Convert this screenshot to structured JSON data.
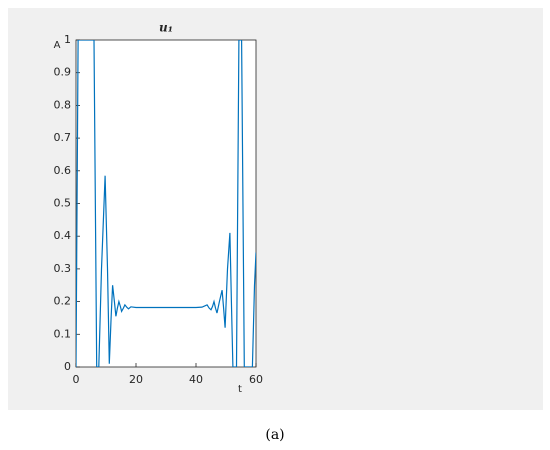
{
  "chart_data": {
    "type": "line",
    "title": "u₁",
    "xlabel": "t",
    "ylabel": "A",
    "caption": "(a)",
    "x": [
      0,
      0.7,
      6,
      6.9,
      7.6,
      8.5,
      9.7,
      10.5,
      11.1,
      11.7,
      12.2,
      12.8,
      13.3,
      13.8,
      14.3,
      14.8,
      15.2,
      15.8,
      16.3,
      17,
      17.5,
      18.3,
      20,
      30,
      40,
      42,
      43,
      43.7,
      44.4,
      45,
      45.5,
      46,
      46.5,
      47,
      47.8,
      48.7,
      49.2,
      49.7,
      50.5,
      51.3,
      51.8,
      52.3,
      53.5,
      54.3,
      55.2,
      56.1,
      58.8,
      59.5,
      60
    ],
    "values": [
      0,
      1,
      1,
      0,
      0,
      0.3,
      0.585,
      0.3,
      0.01,
      0.15,
      0.25,
      0.2,
      0.155,
      0.18,
      0.2,
      0.185,
      0.17,
      0.18,
      0.19,
      0.182,
      0.178,
      0.184,
      0.182,
      0.182,
      0.182,
      0.183,
      0.187,
      0.19,
      0.18,
      0.175,
      0.185,
      0.2,
      0.18,
      0.165,
      0.2,
      0.235,
      0.18,
      0.12,
      0.3,
      0.41,
      0.2,
      0,
      0,
      1,
      1,
      0,
      0,
      0.25,
      0.35
    ],
    "color": "#0072bd",
    "xlim": [
      0,
      60
    ],
    "xticks": [
      0,
      20,
      40,
      60
    ],
    "ylim": [
      0,
      1
    ],
    "yticks": [
      0,
      0.1,
      0.2,
      0.3,
      0.4,
      0.5,
      0.6,
      0.7,
      0.8,
      0.9,
      1
    ]
  }
}
